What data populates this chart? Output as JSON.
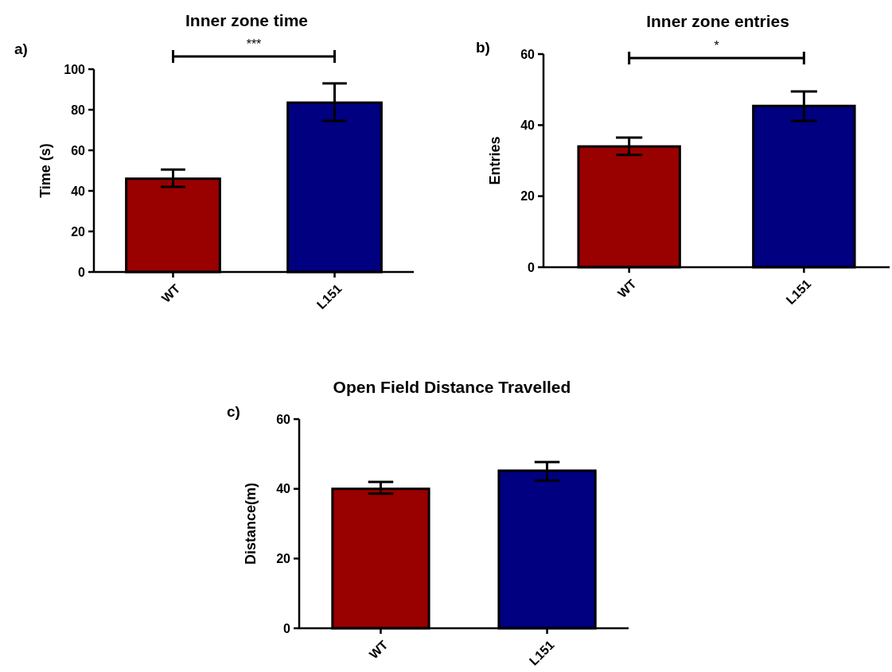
{
  "chart_data": [
    {
      "type": "bar",
      "title": "Inner zone time",
      "ylabel": "Time (s)",
      "categories": [
        "WT",
        "L151"
      ],
      "values": [
        46,
        83.5
      ],
      "colors": [
        "#990000",
        "#000080"
      ],
      "errors": [
        [
          42,
          50.5
        ],
        [
          74.5,
          93
        ]
      ],
      "ylim": [
        0,
        100
      ],
      "yticks": [
        0,
        20,
        40,
        60,
        80,
        100
      ],
      "annotations": [
        "a)",
        "***"
      ]
    },
    {
      "type": "bar",
      "title": "Inner zone entries",
      "ylabel": "Entries",
      "categories": [
        "WT",
        "L151"
      ],
      "values": [
        34,
        45.4
      ],
      "colors": [
        "#990000",
        "#000080"
      ],
      "errors": [
        [
          31.6,
          36.5
        ],
        [
          41.2,
          49.5
        ]
      ],
      "ylim": [
        0,
        60
      ],
      "yticks": [
        0,
        20,
        40,
        60
      ],
      "annotations": [
        "b)",
        "*"
      ]
    },
    {
      "type": "bar",
      "title": "Open Field Distance Travelled",
      "ylabel": "Distance(m)",
      "categories": [
        "WT",
        "L151"
      ],
      "values": [
        40,
        45.2
      ],
      "colors": [
        "#990000",
        "#000080"
      ],
      "errors": [
        [
          38.6,
          42
        ],
        [
          42.4,
          47.7
        ]
      ],
      "ylim": [
        0,
        60
      ],
      "yticks": [
        0,
        20,
        40,
        60
      ],
      "annotations": [
        "c)"
      ]
    }
  ]
}
